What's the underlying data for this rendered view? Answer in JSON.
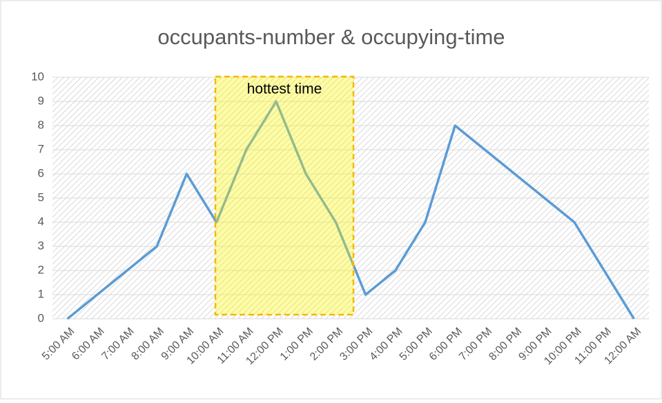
{
  "chart_data": {
    "type": "line",
    "title": "occupants-number & occupying-time",
    "categories": [
      "5:00 AM",
      "6:00 AM",
      "7:00 AM",
      "8:00 AM",
      "9:00 AM",
      "10:00 AM",
      "11:00 AM",
      "12:00 PM",
      "1:00 PM",
      "2:00 PM",
      "3:00 PM",
      "4:00 PM",
      "5:00 PM",
      "6:00 PM",
      "7:00 PM",
      "8:00 PM",
      "9:00 PM",
      "10:00 PM",
      "11:00 PM",
      "12:00 AM"
    ],
    "values": [
      0,
      1,
      2,
      3,
      6,
      4,
      7,
      9,
      6,
      4,
      1,
      2,
      4,
      8,
      7,
      6,
      5,
      4,
      2,
      0
    ],
    "color": "#5b9bd5",
    "ylim": [
      0,
      10
    ],
    "yticks": [
      0,
      1,
      2,
      3,
      4,
      5,
      6,
      7,
      8,
      9,
      10
    ],
    "grid": true,
    "annotation": "hottest time"
  }
}
